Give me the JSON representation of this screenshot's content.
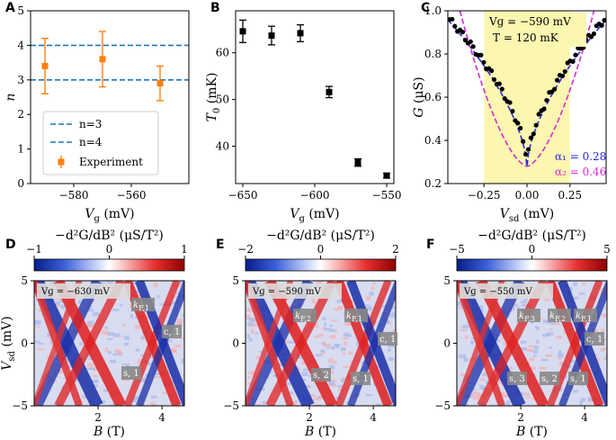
{
  "chart_data": [
    {
      "panel": "A",
      "type": "scatter",
      "xlabel": "V",
      "xlabel_sub": "g",
      "xlabel_unit": " (mV)",
      "ylabel": "n",
      "xlim": [
        -595,
        -540
      ],
      "ylim": [
        0,
        5
      ],
      "xticks": [
        -580,
        -560
      ],
      "xticklabels": [
        "−580",
        "−560"
      ],
      "yticks": [
        0,
        1,
        2,
        3,
        4,
        5
      ],
      "yticklabels": [
        "0",
        "1",
        "2",
        "3",
        "4",
        "5"
      ],
      "hlines": [
        {
          "name": "n=3",
          "y": 3,
          "color": "#1f77b4"
        },
        {
          "name": "n=4",
          "y": 4,
          "color": "#1f77b4"
        }
      ],
      "series": [
        {
          "name": "Experiment",
          "color": "#ff7f0e",
          "x": [
            -590,
            -570,
            -550
          ],
          "y": [
            3.4,
            3.6,
            2.9
          ],
          "err_low": [
            0.8,
            0.8,
            0.5
          ],
          "err_high": [
            0.8,
            0.8,
            0.5
          ]
        }
      ],
      "legend": [
        "n=3",
        "n=4",
        "Experiment"
      ],
      "legend_position": "lower-left"
    },
    {
      "panel": "B",
      "type": "scatter",
      "xlabel": "V",
      "xlabel_sub": "g",
      "xlabel_unit": " (mV)",
      "ylabel": "T",
      "ylabel_sub": "0",
      "ylabel_unit": " (mK)",
      "xlim": [
        -655,
        -545
      ],
      "ylim": [
        32,
        69
      ],
      "xticks": [
        -650,
        -600,
        -550
      ],
      "xticklabels": [
        "−650",
        "−600",
        "−550"
      ],
      "yticks": [
        40,
        50,
        60
      ],
      "yticklabels": [
        "40",
        "50",
        "60"
      ],
      "series": [
        {
          "name": "T0",
          "color": "#000000",
          "x": [
            -650,
            -630,
            -610,
            -590,
            -570,
            -550
          ],
          "y": [
            64.6,
            63.7,
            64.2,
            51.6,
            36.5,
            33.7
          ],
          "err": [
            2.4,
            2.0,
            1.8,
            1.2,
            0.8,
            0.5
          ]
        }
      ]
    },
    {
      "panel": "C",
      "type": "line",
      "xlabel": "V",
      "xlabel_sub": "sd",
      "xlabel_unit": " (mV)",
      "ylabel": "G",
      "ylabel_unit": " (μS)",
      "xlim": [
        -0.46,
        0.46
      ],
      "ylim": [
        0.2,
        1.0
      ],
      "xticks": [
        -0.25,
        0,
        0.25
      ],
      "xticklabels": [
        "−0.25",
        "0.00",
        "0.25"
      ],
      "yticks": [
        0.2,
        0.4,
        0.6,
        0.8,
        1.0
      ],
      "yticklabels": [
        "0.2",
        "0.4",
        "0.6",
        "0.8",
        "1.0"
      ],
      "shaded_region": [
        -0.25,
        0.25
      ],
      "annotation_lines": [
        "Vɡ = −590 mV",
        "T = 120 mK"
      ],
      "fits": [
        {
          "name": "α₁ = 0.28",
          "alpha": 0.28,
          "color": "#2a2ae0",
          "style": "dashed"
        },
        {
          "name": "α₂ = 0.46",
          "alpha": 0.46,
          "color": "#d42ad4",
          "style": "dashed"
        }
      ],
      "data_series": {
        "name": "measured G",
        "color": "#000000",
        "points_from": -0.45,
        "points_to": 0.45,
        "count": 60
      }
    },
    {
      "panel": "D",
      "type": "heatmap",
      "colorbar_label": "−d²G/dB² (μS/T²)",
      "colorbar_ticks": [
        "−1",
        "0",
        "1"
      ],
      "gate_label": "Vɡ = −630 mV",
      "xlabel": "B (T)",
      "ylabel": "V_sd (mV)",
      "xticks": [
        "2",
        "4"
      ],
      "yticks": [
        "−5",
        "0",
        "5"
      ],
      "labels": [
        "k_F,1",
        "c, 1",
        "s, 1"
      ]
    },
    {
      "panel": "E",
      "type": "heatmap",
      "colorbar_label": "−d²G/dB² (μS/T²)",
      "colorbar_ticks": [
        "−2",
        "0",
        "2"
      ],
      "gate_label": "Vɡ = −590 mV",
      "xlabel": "B (T)",
      "ylabel": "",
      "xticks": [
        "2",
        "4"
      ],
      "yticks": [
        "−5",
        "0",
        "5"
      ],
      "labels": [
        "k_F,2",
        "k_F,1",
        "c, 1",
        "s, 2",
        "s, 1"
      ]
    },
    {
      "panel": "F",
      "type": "heatmap",
      "colorbar_label": "−d²G/dB² (μS/T²)",
      "colorbar_ticks": [
        "−5",
        "0",
        "5"
      ],
      "gate_label": "Vɡ = −550 mV",
      "xlabel": "B (T)",
      "ylabel": "",
      "xticks": [
        "2",
        "4"
      ],
      "yticks": [
        "−5",
        "0",
        "5"
      ],
      "labels": [
        "k_F,3",
        "k_F,2",
        "k_F,1",
        "c, 1",
        "s, 3",
        "s, 2",
        "s, 1"
      ]
    }
  ],
  "panel_letters": [
    "A",
    "B",
    "C",
    "D",
    "E",
    "F"
  ],
  "colors": {
    "blue_map": "#1030c0",
    "red_map": "#e01010",
    "highlight": "#fbf6b0",
    "tag_bg": "#888888"
  }
}
